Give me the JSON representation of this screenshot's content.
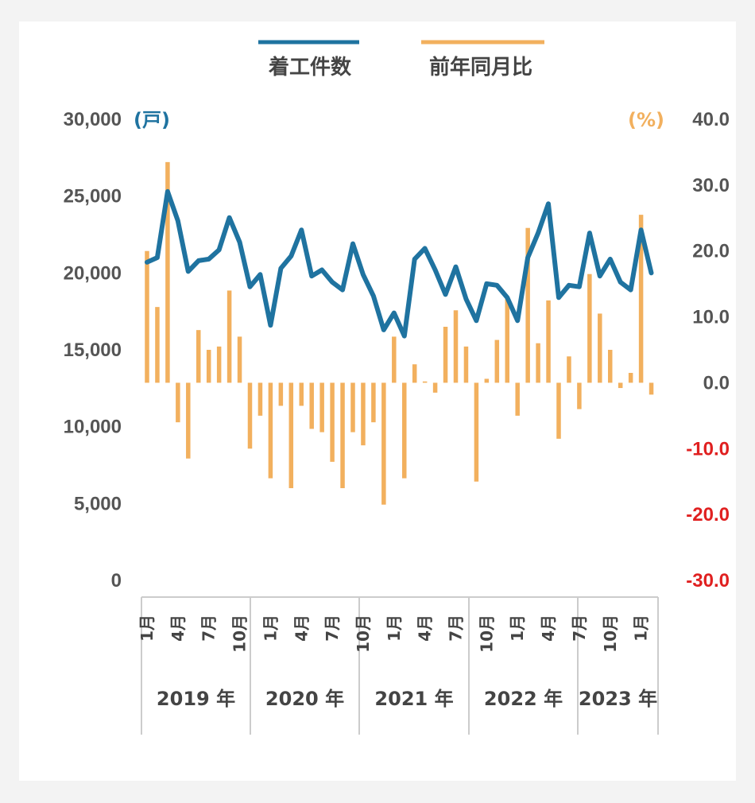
{
  "chart_data": {
    "type": "bar+line",
    "legend": [
      {
        "label": "着工件数",
        "color": "#1f73a0"
      },
      {
        "label": "前年同月比",
        "color": "#f2b05e"
      }
    ],
    "left_axis": {
      "unit": "(戸)",
      "range": [
        0,
        30000
      ],
      "ticks": [
        "0",
        "5,000",
        "10,000",
        "15,000",
        "20,000",
        "25,000",
        "30,000"
      ]
    },
    "right_axis": {
      "unit": "(%)",
      "range": [
        -30,
        40
      ],
      "ticks": [
        {
          "label": "40.0",
          "color": "#555555"
        },
        {
          "label": "30.0",
          "color": "#555555"
        },
        {
          "label": "20.0",
          "color": "#555555"
        },
        {
          "label": "10.0",
          "color": "#555555"
        },
        {
          "label": "0.0",
          "color": "#555555"
        },
        {
          "label": "-10.0",
          "color": "#e02020"
        },
        {
          "label": "-20.0",
          "color": "#e02020"
        },
        {
          "label": "-30.0",
          "color": "#e02020"
        }
      ]
    },
    "years": [
      {
        "label": "2019 年",
        "months": [
          "1月",
          "4月",
          "7月",
          "10月"
        ]
      },
      {
        "label": "2020 年",
        "months": [
          "1月",
          "4月",
          "7月",
          "10月"
        ]
      },
      {
        "label": "2021 年",
        "months": [
          "1月",
          "4月",
          "7月",
          "10月"
        ]
      },
      {
        "label": "2022 年",
        "months": [
          "1月",
          "4月",
          "7月",
          "10月"
        ]
      },
      {
        "label": "2023 年",
        "months": [
          "1月"
        ]
      }
    ],
    "series": [
      {
        "name": "着工件数",
        "axis": "left",
        "type": "line",
        "values": [
          20700,
          21000,
          25300,
          23400,
          20100,
          20800,
          20900,
          21500,
          23600,
          22000,
          19100,
          19900,
          16600,
          20300,
          21100,
          22800,
          19800,
          20200,
          19400,
          18900,
          21900,
          19900,
          18500,
          16300,
          17400,
          15900,
          20900,
          21600,
          20200,
          18600,
          20400,
          18300,
          16900,
          19300,
          19200,
          18400,
          16900,
          21000,
          22600,
          24500,
          18400,
          19200,
          19100,
          22600,
          19800,
          20900,
          19400,
          18900,
          22800,
          20000
        ]
      },
      {
        "name": "前年同月比",
        "axis": "right",
        "type": "bar",
        "values": [
          20.0,
          11.5,
          33.5,
          -6.0,
          -11.5,
          8.0,
          5.0,
          5.5,
          14.0,
          7.0,
          -10.0,
          -5.0,
          -14.5,
          -3.5,
          -16.0,
          -3.5,
          -7.0,
          -7.5,
          -12.0,
          -16.0,
          -7.5,
          -9.5,
          -6.0,
          -18.5,
          7.0,
          -14.5,
          2.8,
          0.2,
          -1.5,
          8.5,
          11.0,
          5.5,
          -15.0,
          0.6,
          6.5,
          13.0,
          -5.0,
          23.5,
          6.0,
          12.5,
          -8.5,
          4.0,
          -4.0,
          16.5,
          10.5,
          5.0,
          -0.8,
          1.5,
          25.5,
          -1.8
        ]
      }
    ]
  }
}
